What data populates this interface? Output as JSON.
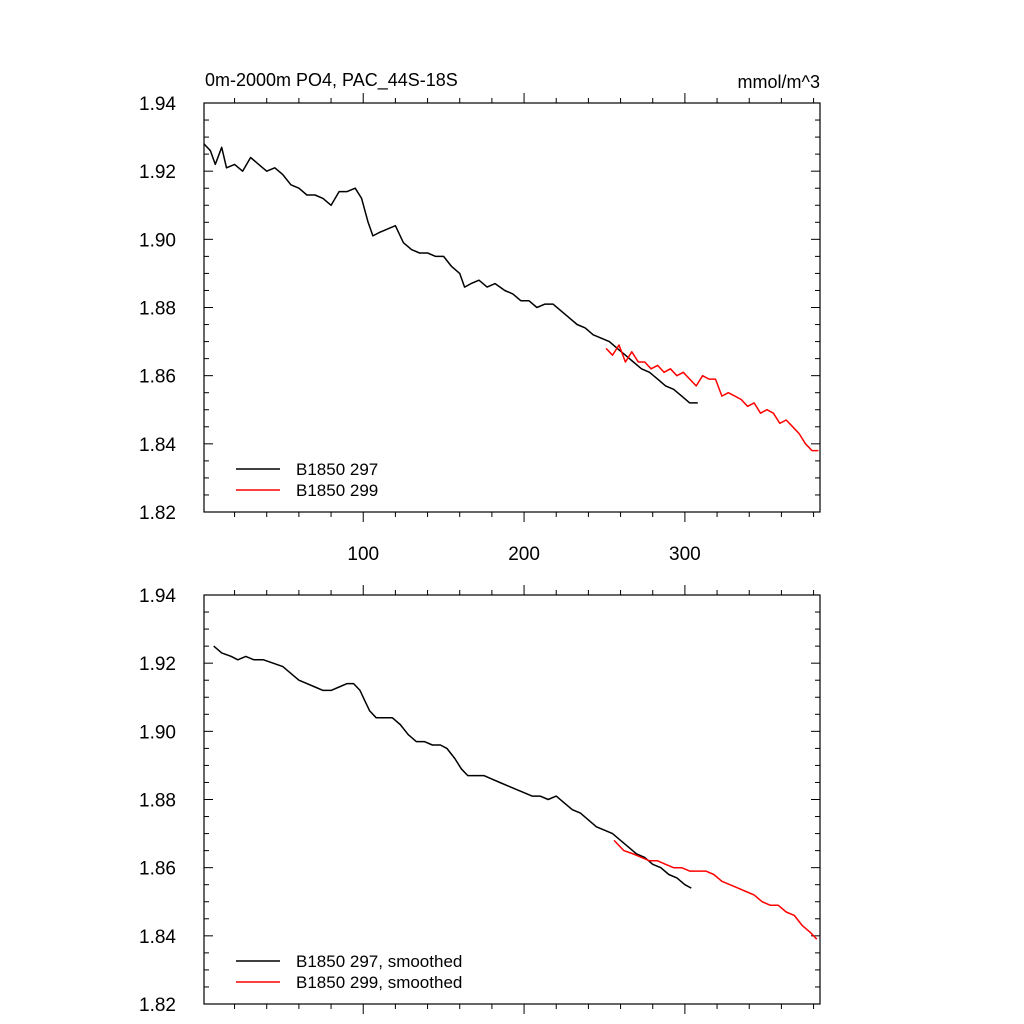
{
  "chart_data": [
    {
      "type": "line",
      "title": "0m-2000m PO4, PAC_44S-18S",
      "units": "mmol/m^3",
      "xlim": [
        1,
        384
      ],
      "ylim": [
        1.82,
        1.94
      ],
      "x_ticks": [
        100,
        200,
        300
      ],
      "y_ticks": [
        "1.94",
        "1.92",
        "1.90",
        "1.88",
        "1.86",
        "1.84",
        "1.82"
      ],
      "legend_position": "bottom-left",
      "grid": false,
      "series": [
        {
          "name": "B1850 297",
          "color": "#000000",
          "points": [
            [
              1,
              1.928
            ],
            [
              5,
              1.926
            ],
            [
              8,
              1.922
            ],
            [
              12,
              1.927
            ],
            [
              15,
              1.921
            ],
            [
              20,
              1.922
            ],
            [
              25,
              1.92
            ],
            [
              30,
              1.924
            ],
            [
              35,
              1.922
            ],
            [
              40,
              1.92
            ],
            [
              45,
              1.921
            ],
            [
              50,
              1.919
            ],
            [
              55,
              1.916
            ],
            [
              60,
              1.915
            ],
            [
              65,
              1.913
            ],
            [
              70,
              1.913
            ],
            [
              75,
              1.912
            ],
            [
              80,
              1.91
            ],
            [
              85,
              1.914
            ],
            [
              90,
              1.914
            ],
            [
              95,
              1.915
            ],
            [
              99,
              1.912
            ],
            [
              103,
              1.905
            ],
            [
              106,
              1.901
            ],
            [
              110,
              1.902
            ],
            [
              115,
              1.903
            ],
            [
              120,
              1.904
            ],
            [
              125,
              1.899
            ],
            [
              130,
              1.897
            ],
            [
              135,
              1.896
            ],
            [
              140,
              1.896
            ],
            [
              145,
              1.895
            ],
            [
              150,
              1.895
            ],
            [
              155,
              1.892
            ],
            [
              160,
              1.89
            ],
            [
              163,
              1.886
            ],
            [
              167,
              1.887
            ],
            [
              172,
              1.888
            ],
            [
              177,
              1.886
            ],
            [
              182,
              1.887
            ],
            [
              188,
              1.885
            ],
            [
              193,
              1.884
            ],
            [
              198,
              1.882
            ],
            [
              203,
              1.882
            ],
            [
              208,
              1.88
            ],
            [
              213,
              1.881
            ],
            [
              218,
              1.881
            ],
            [
              223,
              1.879
            ],
            [
              228,
              1.877
            ],
            [
              233,
              1.875
            ],
            [
              238,
              1.874
            ],
            [
              243,
              1.872
            ],
            [
              248,
              1.871
            ],
            [
              253,
              1.87
            ],
            [
              258,
              1.868
            ],
            [
              263,
              1.866
            ],
            [
              268,
              1.864
            ],
            [
              273,
              1.862
            ],
            [
              278,
              1.861
            ],
            [
              283,
              1.859
            ],
            [
              288,
              1.857
            ],
            [
              293,
              1.856
            ],
            [
              298,
              1.854
            ],
            [
              303,
              1.852
            ],
            [
              308,
              1.852
            ]
          ]
        },
        {
          "name": "B1850 299",
          "color": "#ff0000",
          "points": [
            [
              251,
              1.868
            ],
            [
              255,
              1.866
            ],
            [
              259,
              1.869
            ],
            [
              263,
              1.864
            ],
            [
              267,
              1.867
            ],
            [
              271,
              1.864
            ],
            [
              275,
              1.864
            ],
            [
              279,
              1.862
            ],
            [
              283,
              1.863
            ],
            [
              287,
              1.861
            ],
            [
              291,
              1.862
            ],
            [
              295,
              1.86
            ],
            [
              299,
              1.861
            ],
            [
              303,
              1.859
            ],
            [
              307,
              1.857
            ],
            [
              311,
              1.86
            ],
            [
              315,
              1.859
            ],
            [
              319,
              1.859
            ],
            [
              323,
              1.854
            ],
            [
              327,
              1.855
            ],
            [
              331,
              1.854
            ],
            [
              335,
              1.853
            ],
            [
              339,
              1.851
            ],
            [
              343,
              1.852
            ],
            [
              347,
              1.849
            ],
            [
              351,
              1.85
            ],
            [
              355,
              1.849
            ],
            [
              359,
              1.846
            ],
            [
              363,
              1.847
            ],
            [
              367,
              1.845
            ],
            [
              371,
              1.843
            ],
            [
              375,
              1.84
            ],
            [
              379,
              1.838
            ],
            [
              383,
              1.838
            ]
          ]
        }
      ]
    },
    {
      "type": "line",
      "xlim": [
        1,
        384
      ],
      "ylim": [
        1.82,
        1.94
      ],
      "y_ticks": [
        "1.94",
        "1.92",
        "1.90",
        "1.88",
        "1.86",
        "1.84",
        "1.82"
      ],
      "legend_position": "bottom-left",
      "grid": false,
      "series": [
        {
          "name": "B1850 297, smoothed",
          "color": "#000000",
          "points": [
            [
              7,
              1.925
            ],
            [
              12,
              1.923
            ],
            [
              18,
              1.922
            ],
            [
              22,
              1.921
            ],
            [
              27,
              1.922
            ],
            [
              32,
              1.921
            ],
            [
              38,
              1.921
            ],
            [
              44,
              1.92
            ],
            [
              50,
              1.919
            ],
            [
              55,
              1.917
            ],
            [
              60,
              1.915
            ],
            [
              65,
              1.914
            ],
            [
              70,
              1.913
            ],
            [
              75,
              1.912
            ],
            [
              80,
              1.912
            ],
            [
              85,
              1.913
            ],
            [
              90,
              1.914
            ],
            [
              94,
              1.914
            ],
            [
              98,
              1.912
            ],
            [
              101,
              1.909
            ],
            [
              104,
              1.906
            ],
            [
              108,
              1.904
            ],
            [
              112,
              1.904
            ],
            [
              118,
              1.904
            ],
            [
              123,
              1.902
            ],
            [
              128,
              1.899
            ],
            [
              133,
              1.897
            ],
            [
              138,
              1.897
            ],
            [
              143,
              1.896
            ],
            [
              148,
              1.896
            ],
            [
              152,
              1.895
            ],
            [
              157,
              1.892
            ],
            [
              161,
              1.889
            ],
            [
              165,
              1.887
            ],
            [
              170,
              1.887
            ],
            [
              175,
              1.887
            ],
            [
              180,
              1.886
            ],
            [
              185,
              1.885
            ],
            [
              190,
              1.884
            ],
            [
              195,
              1.883
            ],
            [
              200,
              1.882
            ],
            [
              205,
              1.881
            ],
            [
              210,
              1.881
            ],
            [
              215,
              1.88
            ],
            [
              220,
              1.881
            ],
            [
              225,
              1.879
            ],
            [
              230,
              1.877
            ],
            [
              235,
              1.876
            ],
            [
              240,
              1.874
            ],
            [
              245,
              1.872
            ],
            [
              250,
              1.871
            ],
            [
              255,
              1.87
            ],
            [
              260,
              1.868
            ],
            [
              265,
              1.866
            ],
            [
              270,
              1.864
            ],
            [
              275,
              1.863
            ],
            [
              280,
              1.861
            ],
            [
              285,
              1.86
            ],
            [
              290,
              1.858
            ],
            [
              295,
              1.857
            ],
            [
              300,
              1.855
            ],
            [
              304,
              1.854
            ]
          ]
        },
        {
          "name": "B1850 299, smoothed",
          "color": "#ff0000",
          "points": [
            [
              256,
              1.868
            ],
            [
              262,
              1.865
            ],
            [
              268,
              1.864
            ],
            [
              273,
              1.863
            ],
            [
              278,
              1.862
            ],
            [
              283,
              1.862
            ],
            [
              288,
              1.861
            ],
            [
              293,
              1.86
            ],
            [
              298,
              1.86
            ],
            [
              303,
              1.859
            ],
            [
              308,
              1.859
            ],
            [
              313,
              1.859
            ],
            [
              318,
              1.858
            ],
            [
              323,
              1.856
            ],
            [
              328,
              1.855
            ],
            [
              333,
              1.854
            ],
            [
              338,
              1.853
            ],
            [
              343,
              1.852
            ],
            [
              348,
              1.85
            ],
            [
              353,
              1.849
            ],
            [
              358,
              1.849
            ],
            [
              363,
              1.847
            ],
            [
              368,
              1.846
            ],
            [
              373,
              1.843
            ],
            [
              378,
              1.841
            ],
            [
              382,
              1.839
            ]
          ]
        }
      ]
    }
  ]
}
